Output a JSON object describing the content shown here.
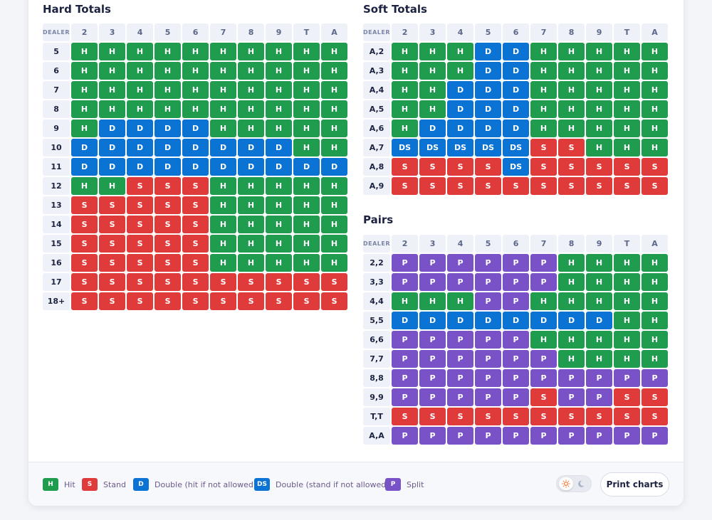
{
  "upcards": [
    "2",
    "3",
    "4",
    "5",
    "6",
    "7",
    "8",
    "9",
    "T",
    "A"
  ],
  "dealer_label": "DEALER",
  "hard": {
    "title": "Hard Totals",
    "rows": [
      {
        "label": "5",
        "cells": [
          "H",
          "H",
          "H",
          "H",
          "H",
          "H",
          "H",
          "H",
          "H",
          "H"
        ]
      },
      {
        "label": "6",
        "cells": [
          "H",
          "H",
          "H",
          "H",
          "H",
          "H",
          "H",
          "H",
          "H",
          "H"
        ]
      },
      {
        "label": "7",
        "cells": [
          "H",
          "H",
          "H",
          "H",
          "H",
          "H",
          "H",
          "H",
          "H",
          "H"
        ]
      },
      {
        "label": "8",
        "cells": [
          "H",
          "H",
          "H",
          "H",
          "H",
          "H",
          "H",
          "H",
          "H",
          "H"
        ]
      },
      {
        "label": "9",
        "cells": [
          "H",
          "D",
          "D",
          "D",
          "D",
          "H",
          "H",
          "H",
          "H",
          "H"
        ]
      },
      {
        "label": "10",
        "cells": [
          "D",
          "D",
          "D",
          "D",
          "D",
          "D",
          "D",
          "D",
          "H",
          "H"
        ]
      },
      {
        "label": "11",
        "cells": [
          "D",
          "D",
          "D",
          "D",
          "D",
          "D",
          "D",
          "D",
          "D",
          "D"
        ]
      },
      {
        "label": "12",
        "cells": [
          "H",
          "H",
          "S",
          "S",
          "S",
          "H",
          "H",
          "H",
          "H",
          "H"
        ]
      },
      {
        "label": "13",
        "cells": [
          "S",
          "S",
          "S",
          "S",
          "S",
          "H",
          "H",
          "H",
          "H",
          "H"
        ]
      },
      {
        "label": "14",
        "cells": [
          "S",
          "S",
          "S",
          "S",
          "S",
          "H",
          "H",
          "H",
          "H",
          "H"
        ]
      },
      {
        "label": "15",
        "cells": [
          "S",
          "S",
          "S",
          "S",
          "S",
          "H",
          "H",
          "H",
          "H",
          "H"
        ]
      },
      {
        "label": "16",
        "cells": [
          "S",
          "S",
          "S",
          "S",
          "S",
          "H",
          "H",
          "H",
          "H",
          "H"
        ]
      },
      {
        "label": "17",
        "cells": [
          "S",
          "S",
          "S",
          "S",
          "S",
          "S",
          "S",
          "S",
          "S",
          "S"
        ]
      },
      {
        "label": "18+",
        "cells": [
          "S",
          "S",
          "S",
          "S",
          "S",
          "S",
          "S",
          "S",
          "S",
          "S"
        ]
      }
    ]
  },
  "soft": {
    "title": "Soft Totals",
    "rows": [
      {
        "label": "A,2",
        "cells": [
          "H",
          "H",
          "H",
          "D",
          "D",
          "H",
          "H",
          "H",
          "H",
          "H"
        ]
      },
      {
        "label": "A,3",
        "cells": [
          "H",
          "H",
          "H",
          "D",
          "D",
          "H",
          "H",
          "H",
          "H",
          "H"
        ]
      },
      {
        "label": "A,4",
        "cells": [
          "H",
          "H",
          "D",
          "D",
          "D",
          "H",
          "H",
          "H",
          "H",
          "H"
        ]
      },
      {
        "label": "A,5",
        "cells": [
          "H",
          "H",
          "D",
          "D",
          "D",
          "H",
          "H",
          "H",
          "H",
          "H"
        ]
      },
      {
        "label": "A,6",
        "cells": [
          "H",
          "D",
          "D",
          "D",
          "D",
          "H",
          "H",
          "H",
          "H",
          "H"
        ]
      },
      {
        "label": "A,7",
        "cells": [
          "DS",
          "DS",
          "DS",
          "DS",
          "DS",
          "S",
          "S",
          "H",
          "H",
          "H"
        ]
      },
      {
        "label": "A,8",
        "cells": [
          "S",
          "S",
          "S",
          "S",
          "DS",
          "S",
          "S",
          "S",
          "S",
          "S"
        ]
      },
      {
        "label": "A,9",
        "cells": [
          "S",
          "S",
          "S",
          "S",
          "S",
          "S",
          "S",
          "S",
          "S",
          "S"
        ]
      }
    ]
  },
  "pairs": {
    "title": "Pairs",
    "rows": [
      {
        "label": "2,2",
        "cells": [
          "P",
          "P",
          "P",
          "P",
          "P",
          "P",
          "H",
          "H",
          "H",
          "H"
        ]
      },
      {
        "label": "3,3",
        "cells": [
          "P",
          "P",
          "P",
          "P",
          "P",
          "P",
          "H",
          "H",
          "H",
          "H"
        ]
      },
      {
        "label": "4,4",
        "cells": [
          "H",
          "H",
          "H",
          "P",
          "P",
          "H",
          "H",
          "H",
          "H",
          "H"
        ]
      },
      {
        "label": "5,5",
        "cells": [
          "D",
          "D",
          "D",
          "D",
          "D",
          "D",
          "D",
          "D",
          "H",
          "H"
        ]
      },
      {
        "label": "6,6",
        "cells": [
          "P",
          "P",
          "P",
          "P",
          "P",
          "H",
          "H",
          "H",
          "H",
          "H"
        ]
      },
      {
        "label": "7,7",
        "cells": [
          "P",
          "P",
          "P",
          "P",
          "P",
          "P",
          "H",
          "H",
          "H",
          "H"
        ]
      },
      {
        "label": "8,8",
        "cells": [
          "P",
          "P",
          "P",
          "P",
          "P",
          "P",
          "P",
          "P",
          "P",
          "P"
        ]
      },
      {
        "label": "9,9",
        "cells": [
          "P",
          "P",
          "P",
          "P",
          "P",
          "S",
          "P",
          "P",
          "S",
          "S"
        ]
      },
      {
        "label": "T,T",
        "cells": [
          "S",
          "S",
          "S",
          "S",
          "S",
          "S",
          "S",
          "S",
          "S",
          "S"
        ]
      },
      {
        "label": "A,A",
        "cells": [
          "P",
          "P",
          "P",
          "P",
          "P",
          "P",
          "P",
          "P",
          "P",
          "P"
        ]
      }
    ]
  },
  "legend": [
    {
      "code": "H",
      "label": "Hit",
      "color": "#1f9c4e"
    },
    {
      "code": "S",
      "label": "Stand",
      "color": "#e03b3b"
    },
    {
      "code": "D",
      "label": "Double (hit if not allowed)",
      "color": "#0a73d4"
    },
    {
      "code": "DS",
      "label": "Double (stand if not allowed)",
      "color": "#0a73d4"
    },
    {
      "code": "P",
      "label": "Split",
      "color": "#7a52c8"
    }
  ],
  "theme_toggle": {
    "state": "light",
    "icons": [
      "sun-icon",
      "moon-icon"
    ]
  },
  "print_button": {
    "label": "Print charts"
  }
}
